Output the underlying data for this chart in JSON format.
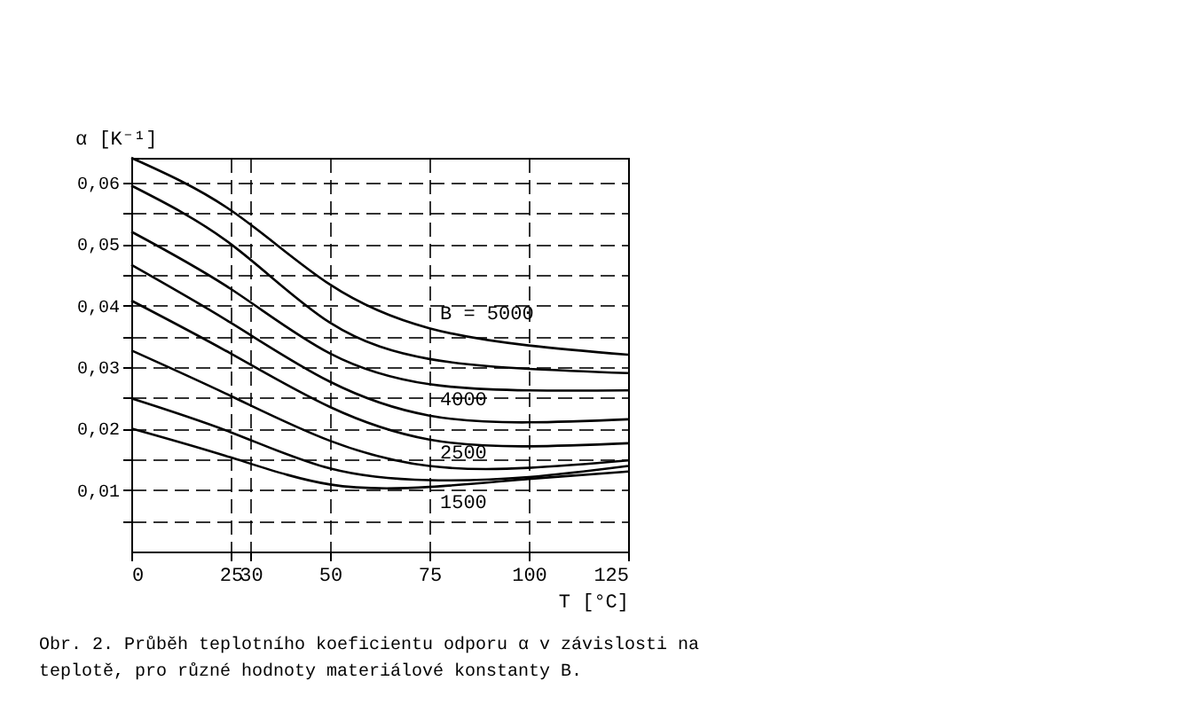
{
  "chart_data": {
    "type": "line",
    "xlabel": "T [°C]",
    "ylabel": "α [K⁻¹]",
    "x": [
      0,
      25,
      50,
      75,
      100,
      125
    ],
    "series": [
      {
        "name": "B = 5000",
        "color": "#000000",
        "values": [
          0.064,
          0.0555,
          0.0434,
          0.0363,
          0.0335,
          0.032
        ]
      },
      {
        "color": "#000000",
        "values": [
          0.0595,
          0.05,
          0.0372,
          0.0313,
          0.0297,
          0.029
        ]
      },
      {
        "name": "4000",
        "color": "#000000",
        "values": [
          0.052,
          0.0427,
          0.0322,
          0.0272,
          0.0262,
          0.0262
        ]
      },
      {
        "color": "#000000",
        "values": [
          0.0466,
          0.0372,
          0.0276,
          0.0221,
          0.021,
          0.0215
        ]
      },
      {
        "color": "#000000",
        "values": [
          0.0408,
          0.0322,
          0.0235,
          0.0182,
          0.0171,
          0.0176
        ]
      },
      {
        "name": "2500",
        "color": "#000000",
        "values": [
          0.0327,
          0.0253,
          0.018,
          0.0139,
          0.0136,
          0.0148
        ]
      },
      {
        "color": "#000000",
        "values": [
          0.0249,
          0.0194,
          0.0135,
          0.0116,
          0.0121,
          0.0139
        ]
      },
      {
        "name": "1500",
        "color": "#000000",
        "values": [
          0.02,
          0.0153,
          0.0109,
          0.0105,
          0.0118,
          0.013
        ]
      }
    ],
    "xlim": [
      0,
      125
    ],
    "xticks": [
      0,
      25,
      30,
      50,
      75,
      100,
      125
    ],
    "ylim": [
      0,
      0.064
    ],
    "yticks": [
      {
        "value": 0.005,
        "label": null
      },
      {
        "value": 0.01,
        "label": "0,01"
      },
      {
        "value": 0.015,
        "label": null
      },
      {
        "value": 0.02,
        "label": "0,02"
      },
      {
        "value": 0.025,
        "label": null
      },
      {
        "value": 0.03,
        "label": "0,03"
      },
      {
        "value": 0.035,
        "label": null
      },
      {
        "value": 0.04,
        "label": "0,04"
      },
      {
        "value": 0.045,
        "label": null
      },
      {
        "value": 0.05,
        "label": "0,05"
      },
      {
        "value": 0.055,
        "label": null
      },
      {
        "value": 0.06,
        "label": "0,06"
      }
    ],
    "grid": true,
    "line_style": "solid",
    "annotations": [
      "Obr. 2. Průběh teplotního koeficientu odporu α v závislosti na teplotě, pro různé hodnoty materiálové konstanty B."
    ]
  }
}
